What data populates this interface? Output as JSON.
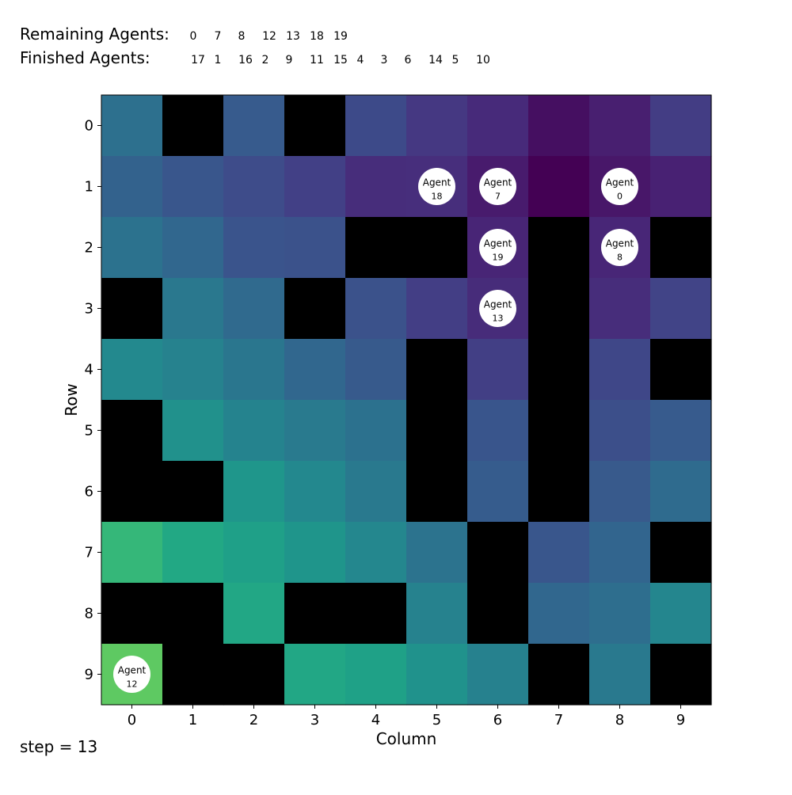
{
  "header": {
    "remaining_label": "Remaining Agents:",
    "finished_label": "Finished Agents:",
    "remaining_ids": [
      "0",
      "7",
      "8",
      "12",
      "13",
      "18",
      "19"
    ],
    "finished_ids": [
      "17",
      "1",
      "16",
      "2",
      "9",
      "11",
      "15",
      "4",
      "3",
      "6",
      "14",
      "5",
      "10"
    ]
  },
  "footer": {
    "step_text": "step = 13"
  },
  "chart_data": {
    "type": "heatmap",
    "xlabel": "Column",
    "ylabel": "Row",
    "x_ticks": [
      "0",
      "1",
      "2",
      "3",
      "4",
      "5",
      "6",
      "7",
      "8",
      "9"
    ],
    "y_ticks": [
      "0",
      "1",
      "2",
      "3",
      "4",
      "5",
      "6",
      "7",
      "8",
      "9"
    ],
    "rows": 10,
    "cols": 10,
    "wall_color": "#000000",
    "grid": [
      [
        "#2d708e",
        null,
        "#375b8d",
        null,
        "#3d4a89",
        "#453882",
        "#472a7a",
        "#450f61",
        "#481f70",
        "#433d84"
      ],
      [
        "#33628d",
        "#39568c",
        "#3e4c8a",
        "#424086",
        "#472d7b",
        "#472e7c",
        "#481b6d",
        "#440154",
        "#481769",
        "#482173"
      ],
      [
        "#2c728e",
        "#31678e",
        "#3a548c",
        "#3b528b",
        null,
        null,
        "#482576",
        null,
        "#482677",
        null
      ],
      [
        null,
        "#2a788e",
        "#306a8e",
        null,
        "#3b528b",
        "#433e85",
        "#472c7a",
        null,
        "#472d7b",
        "#414487"
      ],
      [
        "#23898e",
        "#26828e",
        "#2a768e",
        "#31678e",
        "#375a8c",
        null,
        "#423f85",
        null,
        "#3f4788",
        null
      ],
      [
        null,
        "#21918c",
        "#25838e",
        "#297a8e",
        "#2c718e",
        null,
        "#39558c",
        null,
        "#3c4f8a",
        "#375b8d"
      ],
      [
        null,
        null,
        "#1f968b",
        "#23888e",
        "#29798e",
        null,
        "#365c8d",
        null,
        "#385a8c",
        "#2f6b8e"
      ],
      [
        "#35b779",
        "#22a884",
        "#1fa088",
        "#1f958b",
        "#24878e",
        "#2c738e",
        null,
        "#39568c",
        "#32658e",
        null
      ],
      [
        null,
        null,
        "#22a785",
        null,
        null,
        "#26828e",
        null,
        "#31678e",
        "#2e6e8e",
        "#24868e"
      ],
      [
        "#5ec962",
        null,
        null,
        "#22a785",
        "#1fa187",
        "#20928c",
        "#26818e",
        null,
        "#29798e",
        null
      ]
    ],
    "agents": [
      {
        "label": "Agent",
        "id": "18",
        "row": 1,
        "col": 5
      },
      {
        "label": "Agent",
        "id": "7",
        "row": 1,
        "col": 6
      },
      {
        "label": "Agent",
        "id": "0",
        "row": 1,
        "col": 8
      },
      {
        "label": "Agent",
        "id": "19",
        "row": 2,
        "col": 6
      },
      {
        "label": "Agent",
        "id": "8",
        "row": 2,
        "col": 8
      },
      {
        "label": "Agent",
        "id": "13",
        "row": 3,
        "col": 6
      },
      {
        "label": "Agent",
        "id": "12",
        "row": 9,
        "col": 0
      }
    ]
  }
}
